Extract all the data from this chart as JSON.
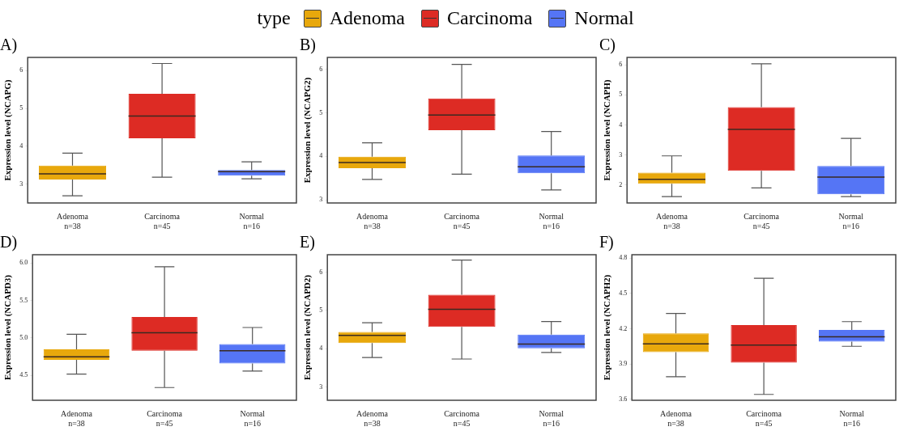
{
  "chart_data": [
    {
      "type": "box",
      "title": "A)",
      "ylabel": "Expression level (NCAPG)",
      "legend": "top",
      "legend_title": "type",
      "categories": [
        "Adenoma\nn=38",
        "Carcinoma\nn=45",
        "Normal\nn=16"
      ],
      "ylim": [
        2.5,
        6.35
      ],
      "yticks": [
        3,
        4,
        5,
        6
      ],
      "series": [
        {
          "name": "Adenoma",
          "color": "#e8a80c",
          "boxes": [
            {
              "low": 2.69,
              "q1": 3.12,
              "median": 3.27,
              "q3": 3.49,
              "high": 3.82
            },
            null,
            null
          ]
        },
        {
          "name": "Carcinoma",
          "color": "#dd2b24",
          "boxes": [
            null,
            {
              "low": 3.18,
              "q1": 4.21,
              "median": 4.8,
              "q3": 5.39,
              "high": 6.19
            },
            null
          ]
        },
        {
          "name": "Normal",
          "color": "#5575f5",
          "boxes": [
            null,
            null,
            {
              "low": 3.14,
              "q1": 3.22,
              "median": 3.33,
              "q3": 3.37,
              "high": 3.59
            }
          ]
        }
      ]
    },
    {
      "type": "box",
      "title": "B)",
      "ylabel": "Expression level (NCAPG2)",
      "categories": [
        "Adenoma\nn=38",
        "Carcinoma\nn=45",
        "Normal\nn=16"
      ],
      "ylim": [
        2.93,
        6.27
      ],
      "yticks": [
        3,
        4,
        5,
        6
      ],
      "series": [
        {
          "color": "#e8a80c",
          "boxes": [
            {
              "low": 3.47,
              "q1": 3.73,
              "median": 3.86,
              "q3": 3.99,
              "high": 4.31
            },
            null,
            null
          ]
        },
        {
          "color": "#dd2b24",
          "boxes": [
            null,
            {
              "low": 3.59,
              "q1": 4.6,
              "median": 4.95,
              "q3": 5.33,
              "high": 6.11
            },
            null
          ]
        },
        {
          "color": "#5575f5",
          "boxes": [
            null,
            null,
            {
              "low": 3.23,
              "q1": 3.61,
              "median": 3.76,
              "q3": 4.02,
              "high": 4.57
            }
          ]
        }
      ]
    },
    {
      "type": "box",
      "title": "C)",
      "ylabel": "Expression level (NCAPH)",
      "categories": [
        "Adenoma\nn=38",
        "Carcinoma\nn=45",
        "Normal\nn=16"
      ],
      "ylim": [
        1.4,
        6.25
      ],
      "yticks": [
        2,
        3,
        4,
        5,
        6
      ],
      "series": [
        {
          "color": "#e8a80c",
          "boxes": [
            {
              "low": 1.61,
              "q1": 2.04,
              "median": 2.19,
              "q3": 2.41,
              "high": 2.97
            },
            null,
            null
          ]
        },
        {
          "color": "#dd2b24",
          "boxes": [
            null,
            {
              "low": 1.9,
              "q1": 2.47,
              "median": 3.85,
              "q3": 4.59,
              "high": 6.04
            },
            null
          ]
        },
        {
          "color": "#5575f5",
          "boxes": [
            null,
            null,
            {
              "low": 1.61,
              "q1": 1.69,
              "median": 2.26,
              "q3": 2.63,
              "high": 3.55
            }
          ]
        }
      ]
    },
    {
      "type": "box",
      "title": "D)",
      "ylabel": "Expression level (NCAPD3)",
      "categories": [
        "Adenoma\nn=38",
        "Carcinoma\nn=45",
        "Normal\nn=16"
      ],
      "ylim": [
        4.17,
        6.11
      ],
      "yticks": [
        {
          "value": 4.5,
          "label": "4.5"
        },
        {
          "value": 5,
          "label": "5.0"
        },
        {
          "value": 5.5,
          "label": "5.5"
        },
        {
          "value": 6,
          "label": "6.0"
        }
      ],
      "series": [
        {
          "color": "#e8a80c",
          "boxes": [
            {
              "low": 4.52,
              "q1": 4.71,
              "median": 4.75,
              "q3": 4.85,
              "high": 5.05
            },
            null,
            null
          ]
        },
        {
          "color": "#dd2b24",
          "boxes": [
            null,
            {
              "low": 4.34,
              "q1": 4.83,
              "median": 5.07,
              "q3": 5.28,
              "high": 5.95
            },
            null
          ]
        },
        {
          "color": "#5575f5",
          "boxes": [
            null,
            null,
            {
              "low": 4.56,
              "q1": 4.66,
              "median": 4.83,
              "q3": 4.92,
              "high": 5.14
            }
          ]
        }
      ]
    },
    {
      "type": "box",
      "title": "E)",
      "ylabel": "Expression level (NCAPD2)",
      "categories": [
        "Adenoma\nn=38",
        "Carcinoma\nn=45",
        "Normal\nn=16"
      ],
      "ylim": [
        2.65,
        6.46
      ],
      "yticks": [
        3,
        4,
        5,
        6
      ],
      "series": [
        {
          "color": "#e8a80c",
          "boxes": [
            {
              "low": 3.77,
              "q1": 4.15,
              "median": 4.35,
              "q3": 4.44,
              "high": 4.68
            },
            null,
            null
          ]
        },
        {
          "color": "#dd2b24",
          "boxes": [
            null,
            {
              "low": 3.73,
              "q1": 4.57,
              "median": 5.03,
              "q3": 5.41,
              "high": 6.32
            },
            null
          ]
        },
        {
          "color": "#5575f5",
          "boxes": [
            null,
            null,
            {
              "low": 3.9,
              "q1": 4.01,
              "median": 4.12,
              "q3": 4.37,
              "high": 4.71
            }
          ]
        }
      ]
    },
    {
      "type": "box",
      "title": "F)",
      "ylabel": "Expression level (NCAPH2)",
      "categories": [
        "Adenoma\nn=38",
        "Carcinoma\nn=45",
        "Normal\nn=16"
      ],
      "ylim": [
        3.59,
        4.83
      ],
      "yticks": [
        3.6,
        3.9,
        4.2,
        4.5,
        4.8
      ],
      "series": [
        {
          "color": "#e8a80c",
          "boxes": [
            {
              "low": 3.79,
              "q1": 4.0,
              "median": 4.07,
              "q3": 4.16,
              "high": 4.33
            },
            null,
            null
          ]
        },
        {
          "color": "#dd2b24",
          "boxes": [
            null,
            {
              "low": 3.64,
              "q1": 3.91,
              "median": 4.06,
              "q3": 4.23,
              "high": 4.63
            },
            null
          ]
        },
        {
          "color": "#5575f5",
          "boxes": [
            null,
            null,
            {
              "low": 4.05,
              "q1": 4.09,
              "median": 4.13,
              "q3": 4.19,
              "high": 4.26
            }
          ]
        }
      ]
    }
  ]
}
